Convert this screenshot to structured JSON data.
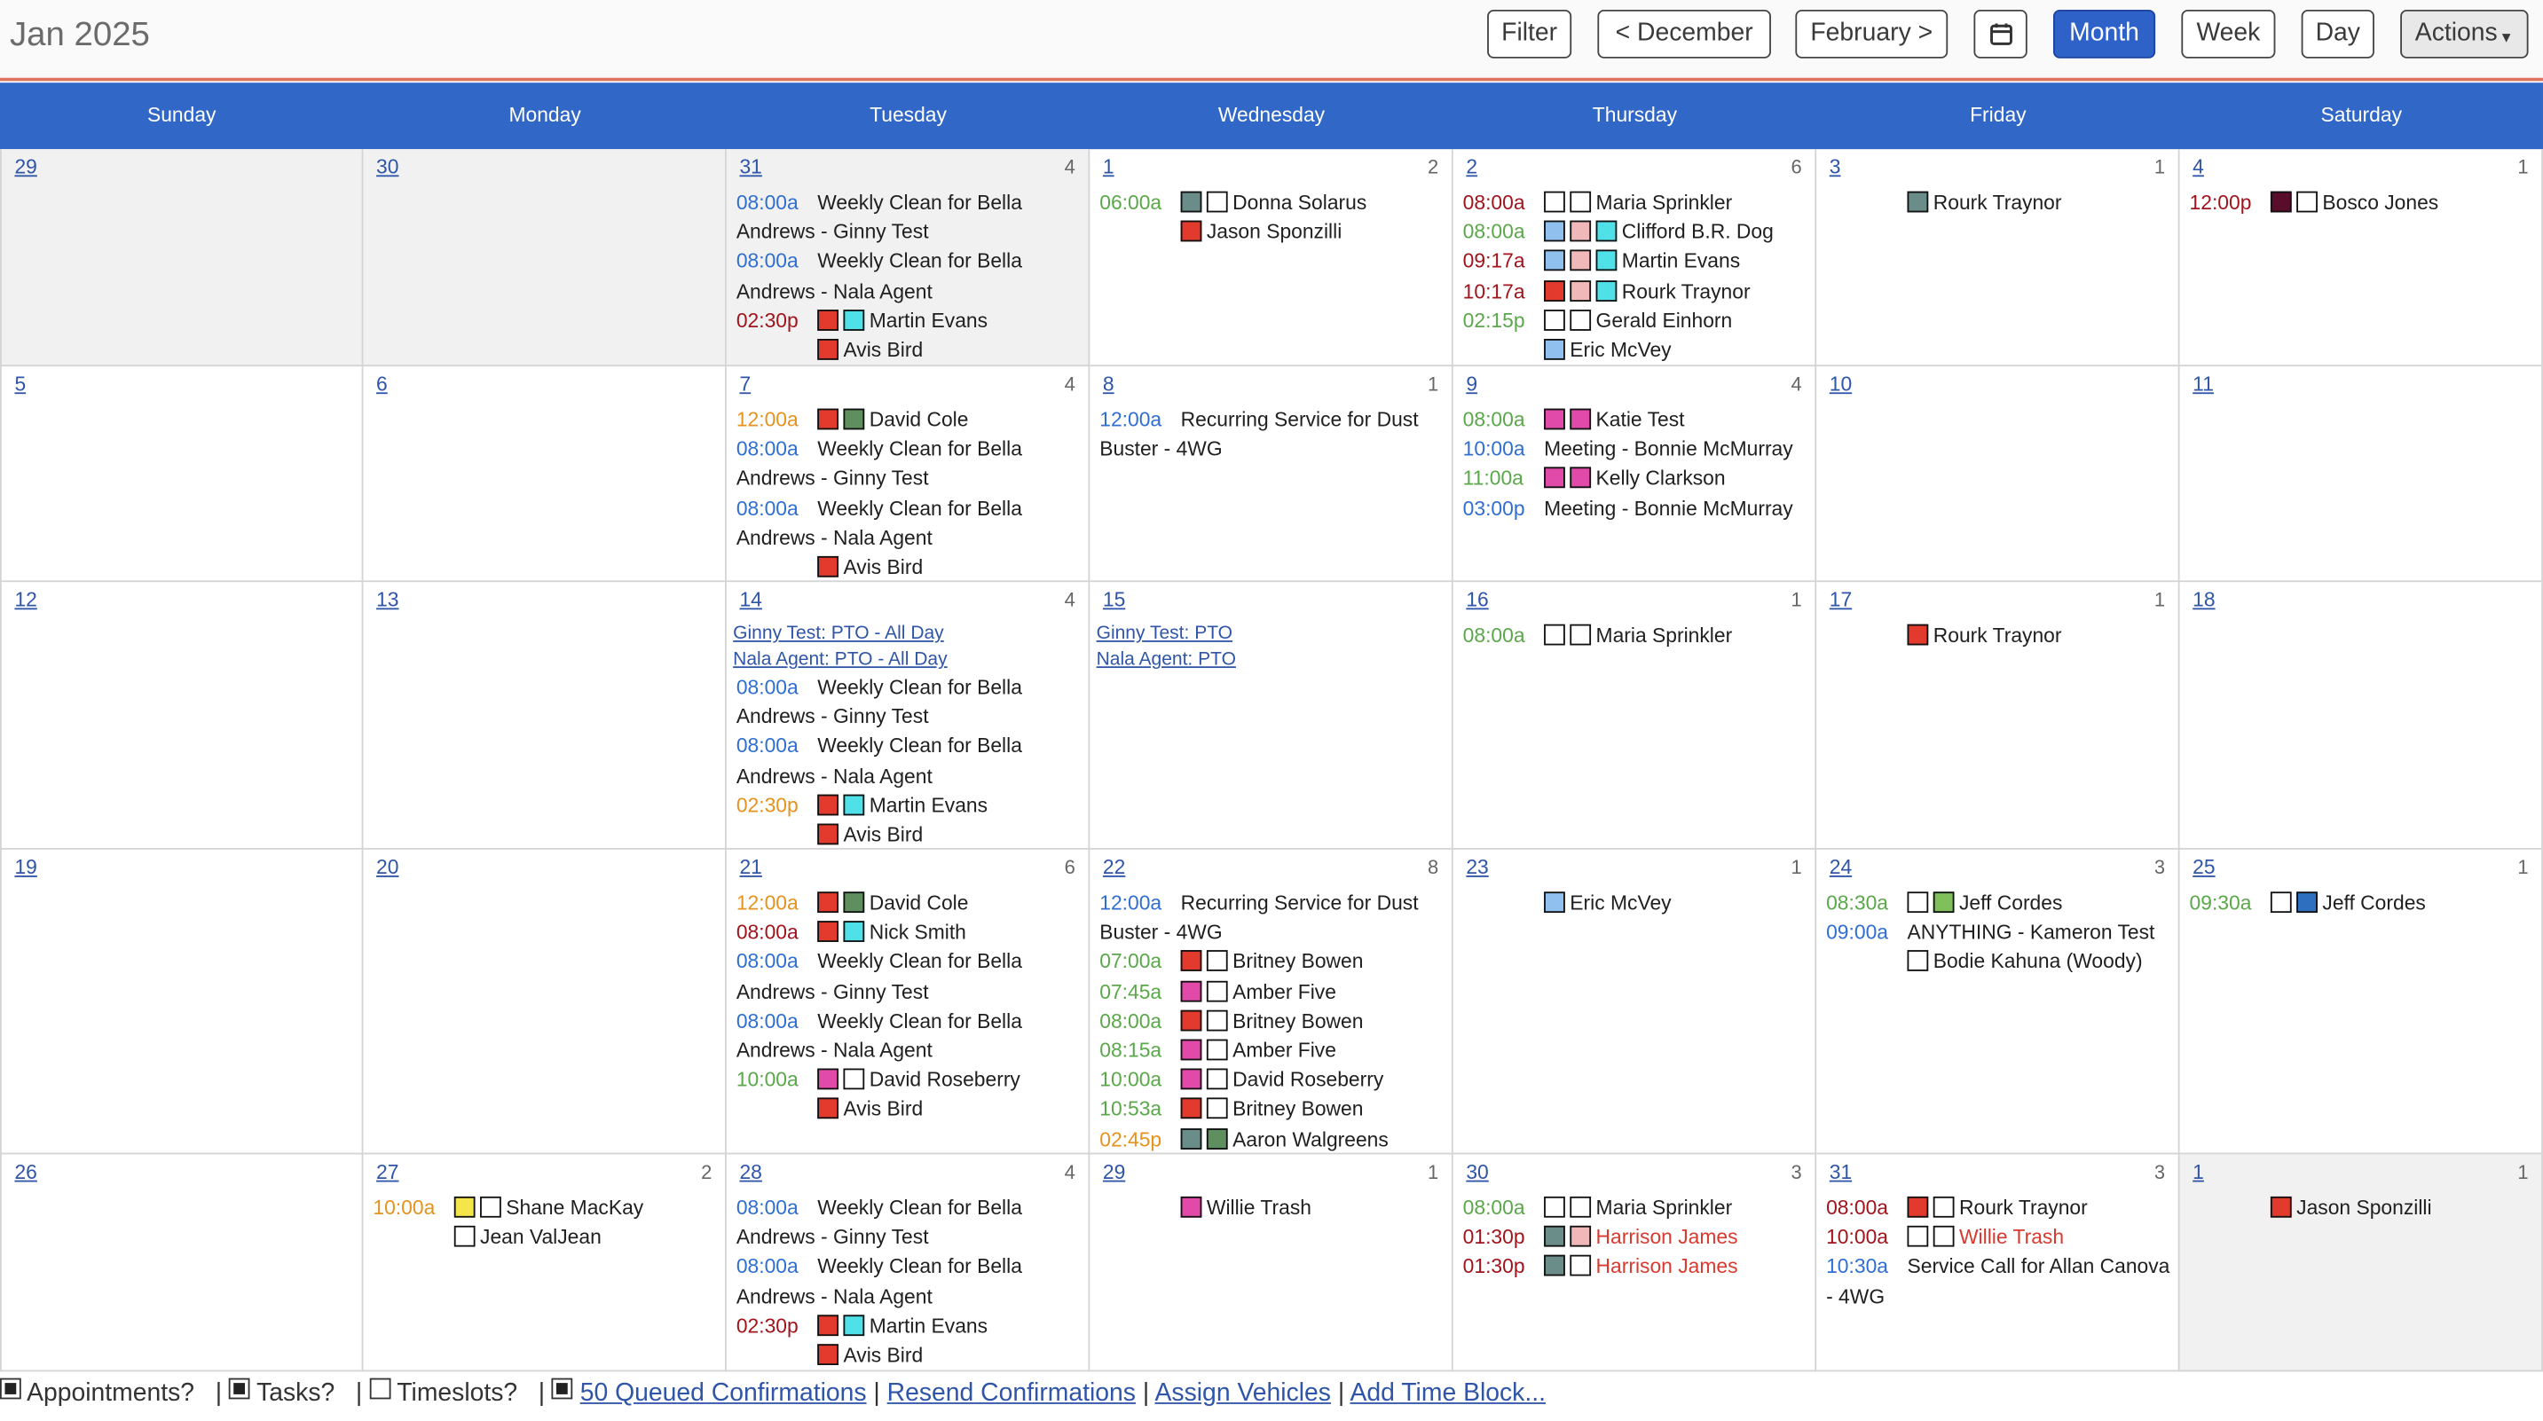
{
  "header": {
    "title": "Jan 2025",
    "buttons": {
      "filter": "Filter",
      "prev": "< December",
      "next": "February >",
      "month": "Month",
      "week": "Week",
      "day": "Day",
      "actions": "Actions"
    }
  },
  "days": [
    "Sunday",
    "Monday",
    "Tuesday",
    "Wednesday",
    "Thursday",
    "Friday",
    "Saturday"
  ],
  "colors": {
    "header_blue": "#3167c6",
    "active_blue": "#2f62c9",
    "time_blue": "#2f6fd1",
    "time_green": "#5aa84a",
    "time_orange": "#e6921e",
    "time_red": "#a1141c",
    "sq_red": "#e23a2c",
    "sq_teal": "#6b8d8a",
    "sq_cyan": "#4fe0e8",
    "sq_pink": "#f0b8b8",
    "sq_lightblue": "#8fc0ee",
    "sq_magenta": "#e14aa8",
    "sq_maroon": "#5a0d2a",
    "sq_green": "#7fc05a",
    "sq_yellow": "#f4e64a",
    "sq_blue": "#2f6fbf",
    "sq_darkgreen": "#5f8f5f",
    "sq_white": "#ffffff"
  },
  "weeks": [
    [
      {
        "d": "29",
        "c": "",
        "g": true,
        "e": []
      },
      {
        "d": "30",
        "c": "",
        "g": true,
        "e": []
      },
      {
        "d": "31",
        "c": "4",
        "g": true,
        "e": [
          {
            "t": "08:00a",
            "tc": "blue",
            "s": [],
            "n": "Weekly Clean for Bella Andrews - Ginny Test",
            "w": true
          },
          {
            "t": "08:00a",
            "tc": "blue",
            "s": [],
            "n": "Weekly Clean for Bella Andrews - Nala Agent",
            "w": true
          },
          {
            "t": "02:30p",
            "tc": "red",
            "s": [
              "sq_red",
              "sq_cyan"
            ],
            "n": "Martin Evans"
          },
          {
            "t": "",
            "s": [
              "sq_red"
            ],
            "n": "Avis Bird"
          }
        ]
      },
      {
        "d": "1",
        "c": "2",
        "e": [
          {
            "t": "06:00a",
            "tc": "green",
            "s": [
              "sq_teal",
              "sq_white"
            ],
            "n": "Donna Solarus"
          },
          {
            "t": "",
            "s": [
              "sq_red"
            ],
            "n": "Jason Sponzilli"
          }
        ]
      },
      {
        "d": "2",
        "c": "6",
        "e": [
          {
            "t": "08:00a",
            "tc": "red",
            "s": [
              "sq_white",
              "sq_white"
            ],
            "n": "Maria Sprinkler"
          },
          {
            "t": "08:00a",
            "tc": "green",
            "s": [
              "sq_lightblue",
              "sq_pink",
              "sq_cyan"
            ],
            "n": "Clifford B.R. Dog"
          },
          {
            "t": "09:17a",
            "tc": "red",
            "s": [
              "sq_lightblue",
              "sq_pink",
              "sq_cyan"
            ],
            "n": "Martin Evans"
          },
          {
            "t": "10:17a",
            "tc": "red",
            "s": [
              "sq_red",
              "sq_pink",
              "sq_cyan"
            ],
            "n": "Rourk Traynor"
          },
          {
            "t": "02:15p",
            "tc": "green",
            "s": [
              "sq_white",
              "sq_white"
            ],
            "n": "Gerald Einhorn"
          },
          {
            "t": "",
            "s": [
              "sq_lightblue"
            ],
            "n": "Eric McVey"
          }
        ]
      },
      {
        "d": "3",
        "c": "1",
        "e": [
          {
            "t": "",
            "s": [
              "sq_teal"
            ],
            "n": "Rourk Traynor"
          }
        ]
      },
      {
        "d": "4",
        "c": "1",
        "e": [
          {
            "t": "12:00p",
            "tc": "red",
            "s": [
              "sq_maroon",
              "sq_white"
            ],
            "n": "Bosco Jones"
          }
        ]
      }
    ],
    [
      {
        "d": "5",
        "c": "",
        "e": []
      },
      {
        "d": "6",
        "c": "",
        "e": []
      },
      {
        "d": "7",
        "c": "4",
        "e": [
          {
            "t": "12:00a",
            "tc": "orange",
            "s": [
              "sq_red",
              "sq_darkgreen"
            ],
            "n": "David Cole"
          },
          {
            "t": "08:00a",
            "tc": "blue",
            "s": [],
            "n": "Weekly Clean for Bella Andrews - Ginny Test",
            "w": true
          },
          {
            "t": "08:00a",
            "tc": "blue",
            "s": [],
            "n": "Weekly Clean for Bella Andrews - Nala Agent",
            "w": true
          },
          {
            "t": "",
            "s": [
              "sq_red"
            ],
            "n": "Avis Bird"
          }
        ]
      },
      {
        "d": "8",
        "c": "1",
        "e": [
          {
            "t": "12:00a",
            "tc": "blue",
            "s": [],
            "n": "Recurring Service for Dust Buster - 4WG",
            "w": true
          }
        ]
      },
      {
        "d": "9",
        "c": "4",
        "e": [
          {
            "t": "08:00a",
            "tc": "green",
            "s": [
              "sq_magenta",
              "sq_magenta"
            ],
            "n": "Katie Test"
          },
          {
            "t": "10:00a",
            "tc": "blue",
            "s": [],
            "n": "Meeting - Bonnie McMurray"
          },
          {
            "t": "11:00a",
            "tc": "green",
            "s": [
              "sq_magenta",
              "sq_magenta"
            ],
            "n": "Kelly Clarkson"
          },
          {
            "t": "03:00p",
            "tc": "blue",
            "s": [],
            "n": "Meeting - Bonnie McMurray"
          }
        ]
      },
      {
        "d": "10",
        "c": "",
        "e": []
      },
      {
        "d": "11",
        "c": "",
        "e": []
      }
    ],
    [
      {
        "d": "12",
        "c": "",
        "e": []
      },
      {
        "d": "13",
        "c": "",
        "e": []
      },
      {
        "d": "14",
        "c": "4",
        "links": [
          "Ginny Test: PTO - All Day",
          "Nala Agent: PTO - All Day"
        ],
        "e": [
          {
            "t": "08:00a",
            "tc": "blue",
            "s": [],
            "n": "Weekly Clean for Bella Andrews - Ginny Test",
            "w": true
          },
          {
            "t": "08:00a",
            "tc": "blue",
            "s": [],
            "n": "Weekly Clean for Bella Andrews - Nala Agent",
            "w": true
          },
          {
            "t": "02:30p",
            "tc": "orange",
            "s": [
              "sq_red",
              "sq_cyan"
            ],
            "n": "Martin Evans"
          },
          {
            "t": "",
            "s": [
              "sq_red"
            ],
            "n": "Avis Bird"
          }
        ]
      },
      {
        "d": "15",
        "c": "",
        "links": [
          "Ginny Test: PTO",
          "Nala Agent: PTO"
        ],
        "e": []
      },
      {
        "d": "16",
        "c": "1",
        "e": [
          {
            "t": "08:00a",
            "tc": "green",
            "s": [
              "sq_white",
              "sq_white"
            ],
            "n": "Maria Sprinkler"
          }
        ]
      },
      {
        "d": "17",
        "c": "1",
        "e": [
          {
            "t": "",
            "s": [
              "sq_red"
            ],
            "n": "Rourk Traynor"
          }
        ]
      },
      {
        "d": "18",
        "c": "",
        "e": []
      }
    ],
    [
      {
        "d": "19",
        "c": "",
        "e": []
      },
      {
        "d": "20",
        "c": "",
        "e": []
      },
      {
        "d": "21",
        "c": "6",
        "e": [
          {
            "t": "12:00a",
            "tc": "orange",
            "s": [
              "sq_red",
              "sq_darkgreen"
            ],
            "n": "David Cole"
          },
          {
            "t": "08:00a",
            "tc": "red",
            "s": [
              "sq_red",
              "sq_cyan"
            ],
            "n": "Nick Smith"
          },
          {
            "t": "08:00a",
            "tc": "blue",
            "s": [],
            "n": "Weekly Clean for Bella Andrews - Ginny Test",
            "w": true
          },
          {
            "t": "08:00a",
            "tc": "blue",
            "s": [],
            "n": "Weekly Clean for Bella Andrews - Nala Agent",
            "w": true
          },
          {
            "t": "10:00a",
            "tc": "green",
            "s": [
              "sq_magenta",
              "sq_white"
            ],
            "n": "David Roseberry"
          },
          {
            "t": "",
            "s": [
              "sq_red"
            ],
            "n": "Avis Bird"
          }
        ]
      },
      {
        "d": "22",
        "c": "8",
        "e": [
          {
            "t": "12:00a",
            "tc": "blue",
            "s": [],
            "n": "Recurring Service for Dust Buster - 4WG",
            "w": true
          },
          {
            "t": "07:00a",
            "tc": "green",
            "s": [
              "sq_red",
              "sq_white"
            ],
            "n": "Britney Bowen"
          },
          {
            "t": "07:45a",
            "tc": "green",
            "s": [
              "sq_magenta",
              "sq_white"
            ],
            "n": "Amber Five"
          },
          {
            "t": "08:00a",
            "tc": "green",
            "s": [
              "sq_red",
              "sq_white"
            ],
            "n": "Britney Bowen"
          },
          {
            "t": "08:15a",
            "tc": "green",
            "s": [
              "sq_magenta",
              "sq_white"
            ],
            "n": "Amber Five"
          },
          {
            "t": "10:00a",
            "tc": "green",
            "s": [
              "sq_magenta",
              "sq_white"
            ],
            "n": "David Roseberry"
          },
          {
            "t": "10:53a",
            "tc": "green",
            "s": [
              "sq_red",
              "sq_white"
            ],
            "n": "Britney Bowen"
          },
          {
            "t": "02:45p",
            "tc": "orange",
            "s": [
              "sq_teal",
              "sq_darkgreen"
            ],
            "n": "Aaron Walgreens"
          }
        ]
      },
      {
        "d": "23",
        "c": "1",
        "e": [
          {
            "t": "",
            "s": [
              "sq_lightblue"
            ],
            "n": "Eric McVey"
          }
        ]
      },
      {
        "d": "24",
        "c": "3",
        "e": [
          {
            "t": "08:30a",
            "tc": "green",
            "s": [
              "sq_white",
              "sq_green"
            ],
            "n": "Jeff Cordes"
          },
          {
            "t": "09:00a",
            "tc": "blue",
            "s": [],
            "n": "ANYTHING - Kameron Test"
          },
          {
            "t": "",
            "s": [
              "sq_white"
            ],
            "n": "Bodie Kahuna (Woody)"
          }
        ]
      },
      {
        "d": "25",
        "c": "1",
        "e": [
          {
            "t": "09:30a",
            "tc": "green",
            "s": [
              "sq_white",
              "sq_blue"
            ],
            "n": "Jeff Cordes"
          }
        ]
      }
    ],
    [
      {
        "d": "26",
        "c": "",
        "e": []
      },
      {
        "d": "27",
        "c": "2",
        "e": [
          {
            "t": "10:00a",
            "tc": "orange",
            "s": [
              "sq_yellow",
              "sq_white"
            ],
            "n": "Shane MacKay"
          },
          {
            "t": "",
            "s": [
              "sq_white"
            ],
            "n": "Jean ValJean"
          }
        ]
      },
      {
        "d": "28",
        "c": "4",
        "e": [
          {
            "t": "08:00a",
            "tc": "blue",
            "s": [],
            "n": "Weekly Clean for Bella Andrews - Ginny Test",
            "w": true
          },
          {
            "t": "08:00a",
            "tc": "blue",
            "s": [],
            "n": "Weekly Clean for Bella Andrews - Nala Agent",
            "w": true
          },
          {
            "t": "02:30p",
            "tc": "red",
            "s": [
              "sq_red",
              "sq_cyan"
            ],
            "n": "Martin Evans"
          },
          {
            "t": "",
            "s": [
              "sq_red"
            ],
            "n": "Avis Bird"
          }
        ]
      },
      {
        "d": "29",
        "c": "1",
        "e": [
          {
            "t": "",
            "s": [
              "sq_magenta"
            ],
            "n": "Willie Trash"
          }
        ]
      },
      {
        "d": "30",
        "c": "3",
        "e": [
          {
            "t": "08:00a",
            "tc": "green",
            "s": [
              "sq_white",
              "sq_white"
            ],
            "n": "Maria Sprinkler"
          },
          {
            "t": "01:30p",
            "tc": "red",
            "s": [
              "sq_teal",
              "sq_pink"
            ],
            "n": "Harrison James",
            "nr": true
          },
          {
            "t": "01:30p",
            "tc": "red",
            "s": [
              "sq_teal",
              "sq_white"
            ],
            "n": "Harrison James",
            "nr": true
          }
        ]
      },
      {
        "d": "31",
        "c": "3",
        "e": [
          {
            "t": "08:00a",
            "tc": "red",
            "s": [
              "sq_red",
              "sq_white"
            ],
            "n": "Rourk Traynor"
          },
          {
            "t": "10:00a",
            "tc": "red",
            "s": [
              "sq_white",
              "sq_white"
            ],
            "n": "Willie Trash",
            "nr": true
          },
          {
            "t": "10:30a",
            "tc": "blue",
            "s": [],
            "n": "Service Call for Allan Canova - 4WG",
            "w": true
          }
        ]
      },
      {
        "d": "1",
        "c": "1",
        "g": true,
        "e": [
          {
            "t": "",
            "s": [
              "sq_red"
            ],
            "n": "Jason Sponzilli"
          }
        ]
      }
    ]
  ],
  "footer": {
    "appointments": "Appointments?",
    "tasks": "Tasks?",
    "timeslots": "Timeslots?",
    "queued": "50 Queued Confirmations",
    "resend": "Resend Confirmations",
    "assign": "Assign Vehicles",
    "add_block": "Add Time Block..."
  }
}
